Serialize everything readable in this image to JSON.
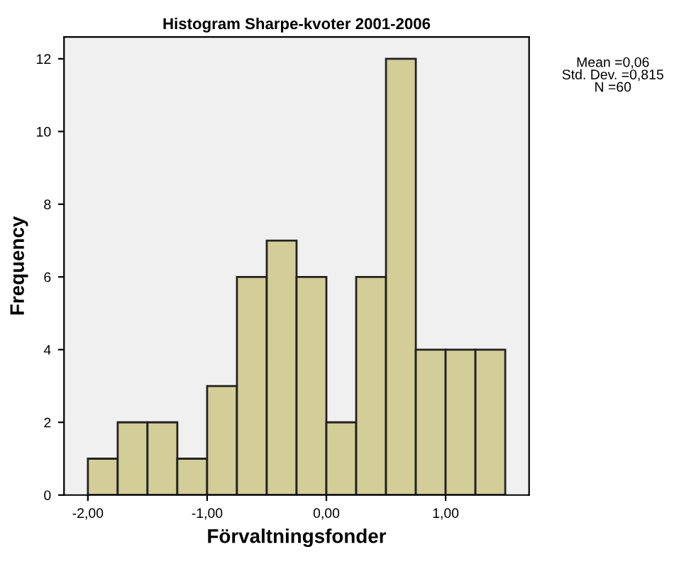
{
  "chart_data": {
    "type": "histogram",
    "title": "Histogram Sharpe-kvoter 2001-2006",
    "xlabel": "Förvaltningsfonder",
    "ylabel": "Frequency",
    "bins": [
      -2.0,
      -1.75,
      -1.5,
      -1.25,
      -1.0,
      -0.75,
      -0.5,
      -0.25,
      0.0,
      0.25,
      0.5,
      0.75,
      1.0,
      1.25,
      1.5
    ],
    "values": [
      1,
      2,
      2,
      1,
      3,
      6,
      7,
      6,
      2,
      6,
      12,
      4,
      4,
      4
    ],
    "color": "#d3ce97",
    "xlim": [
      -2.2,
      1.7
    ],
    "xticks": [
      {
        "value": -2,
        "label": "-2,00"
      },
      {
        "value": -1,
        "label": "-1,00"
      },
      {
        "value": 0,
        "label": "0,00"
      },
      {
        "value": 1,
        "label": "1,00"
      }
    ],
    "ylim": [
      0,
      12.6
    ],
    "yticks": [
      0,
      2,
      4,
      6,
      8,
      10,
      12
    ],
    "grid": false,
    "legend": false,
    "annotations": [
      "Mean =0,06\nStd. Dev. =0,815\nN =60"
    ]
  }
}
